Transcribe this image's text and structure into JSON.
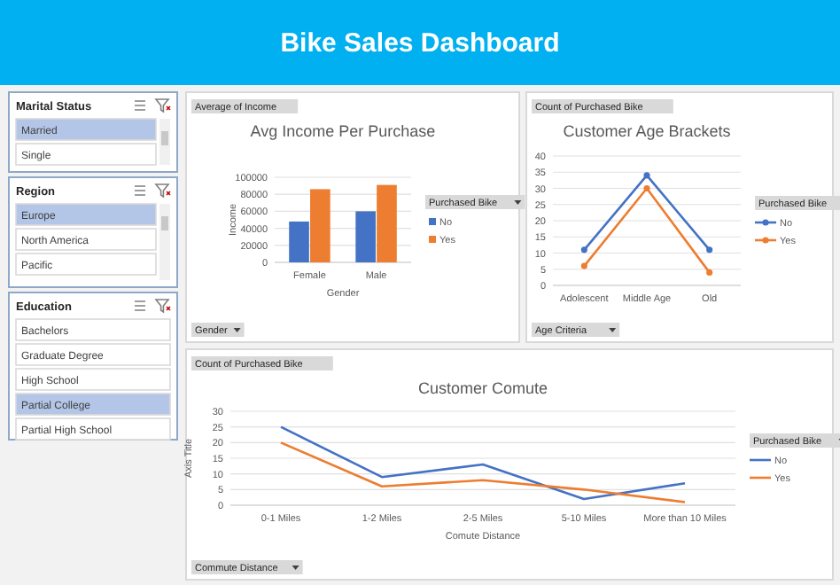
{
  "chart_data": [
    {
      "type": "other",
      "title": "Bike Sales Dashboard"
    },
    {
      "type": "other",
      "title": "Marital Status",
      "categories": [
        "Married",
        "Single"
      ],
      "colors": [
        "#b4c6e7",
        "#ffffff"
      ]
    },
    {
      "type": "other",
      "title": "Region",
      "categories": [
        "Europe",
        "North America",
        "Pacific"
      ],
      "colors": [
        "#b4c6e7",
        "#ffffff",
        "#ffffff"
      ]
    },
    {
      "type": "other",
      "title": "Education",
      "categories": [
        "Bachelors",
        "Graduate Degree",
        "High School",
        "Partial College",
        "Partial High School"
      ],
      "colors": [
        "#ffffff",
        "#ffffff",
        "#ffffff",
        "#b4c6e7",
        "#ffffff"
      ]
    },
    {
      "type": "bar",
      "title": "Avg Income Per Purchase",
      "xlabel": "Gender",
      "ylabel": "Income",
      "legend_title": "Purchased Bike",
      "categories": [
        "Female",
        "Male"
      ],
      "series": [
        {
          "name": "No",
          "color": "#4472c4",
          "values": [
            48000,
            60000
          ]
        },
        {
          "name": "Yes",
          "color": "#ed7d31",
          "values": [
            86000,
            91000
          ]
        }
      ],
      "ylim": [
        0,
        100000
      ],
      "yticks": [
        0,
        20000,
        40000,
        60000,
        80000,
        100000
      ],
      "grid": "y",
      "legend": "right",
      "annotations": [
        "Average of Income",
        "Gender"
      ]
    },
    {
      "type": "line",
      "title": "Customer Age Brackets",
      "legend_title": "Purchased Bike",
      "categories": [
        "Adolescent",
        "Middle Age",
        "Old"
      ],
      "series": [
        {
          "name": "No",
          "color": "#4472c4",
          "values": [
            11,
            34,
            11
          ]
        },
        {
          "name": "Yes",
          "color": "#ed7d31",
          "values": [
            6,
            30,
            4
          ]
        }
      ],
      "ylim": [
        0,
        40
      ],
      "yticks": [
        0,
        5,
        10,
        15,
        20,
        25,
        30,
        35,
        40
      ],
      "grid": "y",
      "legend": "right",
      "marker": "circle",
      "annotations": [
        "Count of Purchased Bike",
        "Age Criteria"
      ]
    },
    {
      "type": "line",
      "title": "Customer Comute",
      "xlabel": "Comute Distance",
      "ylabel": "Axis Title",
      "legend_title": "Purchased Bike",
      "categories": [
        "0-1 Miles",
        "1-2 Miles",
        "2-5 Miles",
        "5-10 Miles",
        "More than 10 Miles"
      ],
      "series": [
        {
          "name": "No",
          "color": "#4472c4",
          "values": [
            25,
            9,
            13,
            2,
            7
          ]
        },
        {
          "name": "Yes",
          "color": "#ed7d31",
          "values": [
            20,
            6,
            8,
            5,
            1
          ]
        }
      ],
      "ylim": [
        0,
        30
      ],
      "yticks": [
        0,
        5,
        10,
        15,
        20,
        25,
        30
      ],
      "grid": "y",
      "legend": "right",
      "annotations": [
        "Count of Purchased Bike",
        "Commute Distance"
      ]
    }
  ]
}
